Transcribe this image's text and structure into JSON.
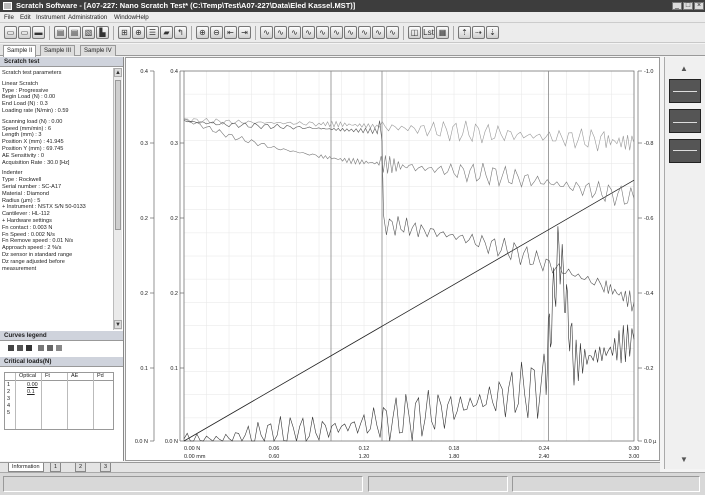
{
  "window": {
    "title": "Scratch Software - [A07-227: Nano Scratch Test* (C:\\Temp\\Test\\A07-227\\Data\\Eled Kassel.MST)]",
    "controls": [
      "_",
      "□",
      "×"
    ]
  },
  "menu": [
    "File",
    "Edit",
    "Instrument",
    "Administration",
    "Window",
    "Help"
  ],
  "toolbar": {
    "buttons": [
      {
        "name": "new-icon",
        "glyph": "▭"
      },
      {
        "name": "open-icon",
        "glyph": "▭"
      },
      {
        "name": "save-icon",
        "glyph": "▬"
      },
      {
        "name": "print-icon",
        "glyph": "▤"
      },
      {
        "name": "print-preview-icon",
        "glyph": "▤"
      },
      {
        "name": "copy-icon",
        "glyph": "▧"
      },
      {
        "name": "export-icon",
        "glyph": "▙"
      },
      {
        "name": "grid-icon",
        "glyph": "⊞"
      },
      {
        "name": "crosshair-icon",
        "glyph": "⊕"
      },
      {
        "name": "filter-icon",
        "glyph": "☰"
      },
      {
        "name": "folder-icon",
        "glyph": "▰"
      },
      {
        "name": "marker-icon",
        "glyph": "↰"
      },
      {
        "name": "zoom-in-icon",
        "glyph": "⊕"
      },
      {
        "name": "zoom-out-icon",
        "glyph": "⊖"
      },
      {
        "name": "cursor-left-icon",
        "glyph": "⇤"
      },
      {
        "name": "cursor-right-icon",
        "glyph": "⇥"
      },
      {
        "name": "curve-1-icon",
        "glyph": "∿"
      },
      {
        "name": "curve-2-icon",
        "glyph": "∿"
      },
      {
        "name": "curve-3-icon",
        "glyph": "∿"
      },
      {
        "name": "curve-4-icon",
        "glyph": "∿"
      },
      {
        "name": "curve-5-icon",
        "glyph": "∿"
      },
      {
        "name": "curve-6-icon",
        "glyph": "∿"
      },
      {
        "name": "curve-7-icon",
        "glyph": "∿"
      },
      {
        "name": "curve-8-icon",
        "glyph": "∿"
      },
      {
        "name": "curve-9-icon",
        "glyph": "∿"
      },
      {
        "name": "curve-10-icon",
        "glyph": "∿"
      },
      {
        "name": "window-icon",
        "glyph": "◫"
      },
      {
        "name": "list-icon",
        "glyph": "Lst"
      },
      {
        "name": "report-icon",
        "glyph": "▦"
      },
      {
        "name": "arrow-up-icon",
        "glyph": "⇡"
      },
      {
        "name": "arrow-right-icon",
        "glyph": "⇢"
      },
      {
        "name": "arrow-down-icon",
        "glyph": "⇣"
      }
    ]
  },
  "sample_tabs": [
    "Sample II",
    "Sample III",
    "Sample IV"
  ],
  "left": {
    "title": "Scratch test",
    "params": [
      "Scratch test parameters",
      "",
      "Linear Scratch",
      "Type : Progressive",
      "Begin Load (N) : 0.00",
      "End Load (N) : 0.3",
      "Loading rate (N/min) : 0.59",
      "",
      "Scanning load (N) : 0.00",
      "Speed (mm/min) : 6",
      "Length (mm) : 3",
      "Position X (mm) : 41.945",
      "Position Y (mm) : 69.745",
      "AE Sensitivity : 0",
      "Acquisition Rate : 30.0 [Hz]",
      "",
      "Indenter",
      "Type : Rockwell",
      "Serial number : SC-A17",
      "Material : Diamond",
      "Radius (µm) : 5",
      "+ Instrument : NSTX S/N 50-0133",
      "   Cantilever : HL-112",
      "+ Hardware settings",
      "   Fn contact : 0.003 N",
      "   Fn Speed : 0.002 N/s",
      "   Fn Remove speed : 0.01 N/s",
      "   Approach speed : 2 %/s",
      "   Dz sensor in standard range",
      "   Dz range adjusted before",
      "   measurement"
    ],
    "legend_title": "Curves legend",
    "critical_title": "Critical loads(N)",
    "critical_headers": [
      "Optical",
      "Ft",
      "AE",
      "Pd"
    ],
    "critical_rows": [
      "1",
      "2",
      "3",
      "4",
      "5"
    ],
    "critical_values": [
      "0.00",
      "0.1",
      "",
      "",
      ""
    ]
  },
  "chart_data": {
    "type": "line",
    "left_axis_1": {
      "ticks": [
        "0.4",
        "0.3",
        "0.2",
        "0.2",
        "0.1",
        "0.0 N"
      ],
      "ylim": [
        0,
        0.4
      ]
    },
    "left_axis_2": {
      "ticks": [
        "0.4",
        "0.3",
        "0.2",
        "0.2",
        "0.1",
        "0.0 N"
      ],
      "ylim": [
        0,
        0.4
      ]
    },
    "right_axis_1": {
      "ticks": [
        "-1.0",
        "-0.8",
        "-0.6",
        "-0.4",
        "-0.2",
        "0.0 µ"
      ]
    },
    "x_axis_load": {
      "ticks": [
        "0.00 N",
        "0.06",
        "0.12",
        "0.18",
        "0.24",
        "0.30"
      ]
    },
    "x_axis_position": {
      "ticks": [
        "0.00 mm",
        "0.60",
        "1.20",
        "1.80",
        "2.40",
        "3.00"
      ],
      "xlim": [
        0,
        3.0
      ]
    },
    "vertical_markers_mm": [
      0.98,
      1.32,
      2.43
    ],
    "series": [
      {
        "values": [
          [
            0.0,
            0.0
          ],
          [
            3.0,
            0.282
          ]
        ]
      },
      {
        "values": [
          [
            0.0,
            0.347
          ],
          [
            0.3,
            0.345
          ],
          [
            0.6,
            0.344
          ],
          [
            0.9,
            0.343
          ],
          [
            1.1,
            0.342
          ],
          [
            1.3,
            0.34
          ],
          [
            1.6,
            0.337
          ],
          [
            1.9,
            0.334
          ],
          [
            2.2,
            0.331
          ],
          [
            2.5,
            0.328
          ],
          [
            2.8,
            0.325
          ],
          [
            3.0,
            0.322
          ]
        ]
      },
      {
        "values": [
          [
            0.0,
            0.348
          ],
          [
            0.3,
            0.33
          ],
          [
            0.6,
            0.317
          ],
          [
            0.9,
            0.308
          ],
          [
            1.1,
            0.303
          ],
          [
            1.3,
            0.3
          ],
          [
            1.5,
            0.296
          ],
          [
            1.8,
            0.292
          ],
          [
            2.1,
            0.287
          ],
          [
            2.4,
            0.28
          ],
          [
            2.7,
            0.272
          ],
          [
            3.0,
            0.262
          ]
        ]
      },
      {
        "values": [
          [
            0.0,
            0.346
          ],
          [
            0.3,
            0.342
          ],
          [
            0.6,
            0.34
          ],
          [
            0.9,
            0.338
          ],
          [
            1.1,
            0.336
          ],
          [
            1.32,
            0.335
          ],
          [
            1.33,
            0.235
          ],
          [
            1.6,
            0.228
          ],
          [
            1.9,
            0.218
          ],
          [
            2.2,
            0.205
          ],
          [
            2.5,
            0.186
          ],
          [
            2.8,
            0.168
          ],
          [
            3.0,
            0.15
          ]
        ]
      },
      {
        "values": [
          [
            0.0,
            0.001
          ],
          [
            0.3,
            0.003
          ],
          [
            0.6,
            0.008
          ],
          [
            0.9,
            0.012
          ],
          [
            1.2,
            0.018
          ],
          [
            1.5,
            0.026
          ],
          [
            1.8,
            0.035
          ],
          [
            2.1,
            0.048
          ],
          [
            2.4,
            0.06
          ],
          [
            2.5,
            0.21
          ],
          [
            2.6,
            0.085
          ],
          [
            2.8,
            0.095
          ],
          [
            3.0,
            0.11
          ]
        ]
      }
    ]
  },
  "right": {
    "thumbs": [
      "thumb-1",
      "thumb-2",
      "thumb-3"
    ]
  },
  "bottom_tabs": [
    "Information",
    "1",
    "2",
    "3"
  ]
}
